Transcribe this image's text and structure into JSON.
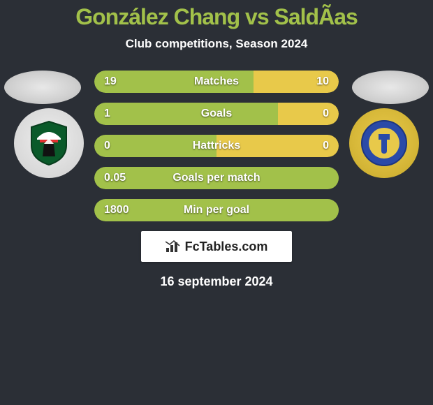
{
  "title": {
    "text": "González Chang vs SaldÃ­as",
    "color": "#a2c14a",
    "fontsize": 32
  },
  "subtitle": {
    "text": "Club competitions, Season 2024",
    "color": "#ffffff",
    "fontsize": 17
  },
  "date": {
    "text": "16 september 2024",
    "color": "#ffffff",
    "fontsize": 18
  },
  "branding": {
    "text": "FcTables.com",
    "fontsize": 18
  },
  "colors": {
    "background": "#2b2f36",
    "left_accent": "#a2c14a",
    "right_accent": "#e8c94a",
    "bar_bg_left": "#3c4a2e",
    "bar_bg_right": "#4a4228"
  },
  "stats": {
    "label_fontsize": 16,
    "value_fontsize": 16,
    "rows": [
      {
        "label": "Matches",
        "left": "19",
        "right": "10",
        "left_pct": 65,
        "right_pct": 35
      },
      {
        "label": "Goals",
        "left": "1",
        "right": "0",
        "left_pct": 75,
        "right_pct": 25
      },
      {
        "label": "Hattricks",
        "left": "0",
        "right": "0",
        "left_pct": 50,
        "right_pct": 50
      },
      {
        "label": "Goals per match",
        "left": "0.05",
        "right": "",
        "left_pct": 100,
        "right_pct": 0
      },
      {
        "label": "Min per goal",
        "left": "1800",
        "right": "",
        "left_pct": 100,
        "right_pct": 0
      }
    ]
  }
}
